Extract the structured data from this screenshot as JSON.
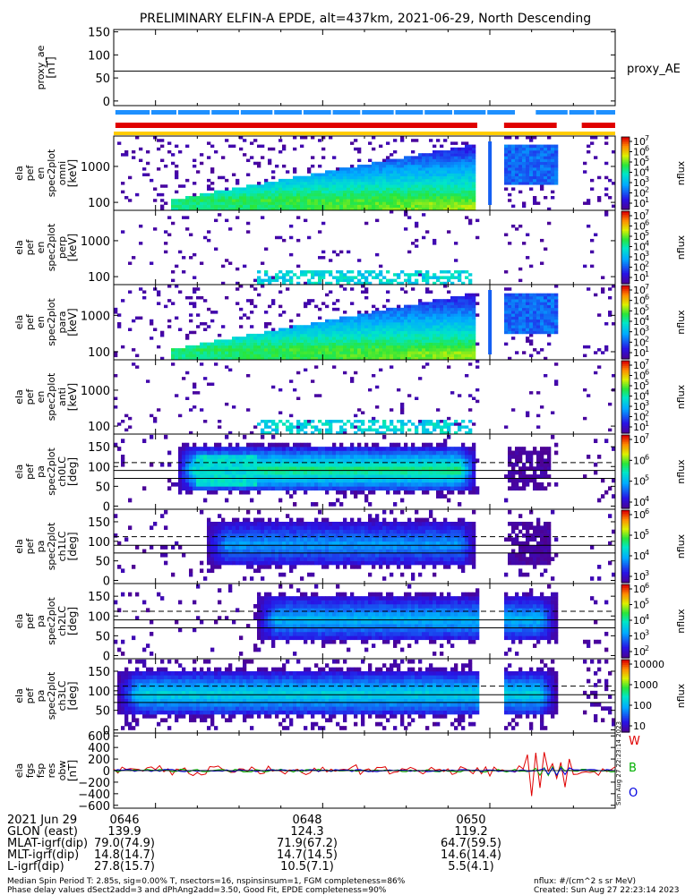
{
  "title": "PRELIMINARY ELFIN-A EPDE, alt=437km, 2021-06-29, North Descending",
  "chart_data": [
    {
      "type": "line",
      "ylabel": [
        "proxy_ae",
        "[nT]"
      ],
      "legend": "proxy_AE",
      "ylim": [
        -10,
        155
      ],
      "yticks": [
        "150",
        "100",
        "50",
        "0"
      ],
      "ytick_values": [
        150,
        100,
        50,
        0
      ],
      "series": [
        {
          "values": [
            65,
            65
          ]
        }
      ],
      "x": [
        "06:45:30",
        "06:51:30"
      ]
    },
    {
      "type": "heatmap",
      "ylabel": [
        "ela",
        "pef",
        "en",
        "spec2plot",
        "omni",
        "[keV]"
      ],
      "yticks": [
        "1000",
        "100"
      ],
      "ytick_values": [
        1000,
        100
      ],
      "ylim": [
        60,
        7000
      ],
      "yscale": "log",
      "colorbar": {
        "ticks": [
          "10",
          "10",
          "10",
          "10",
          "10",
          "10",
          "10"
        ],
        "exps": [
          "7",
          "6",
          "5",
          "4",
          "3",
          "2",
          "1"
        ],
        "label": "nflux",
        "range": [
          10,
          10000000
        ],
        "scale": "log"
      }
    },
    {
      "type": "heatmap",
      "ylabel": [
        "ela",
        "pef",
        "en",
        "spec2plot",
        "perp",
        "[keV]"
      ],
      "yticks": [
        "1000",
        "100"
      ],
      "ytick_values": [
        1000,
        100
      ],
      "ylim": [
        60,
        7000
      ],
      "yscale": "log",
      "colorbar": {
        "ticks": [
          "10",
          "10",
          "10",
          "10",
          "10",
          "10",
          "10"
        ],
        "exps": [
          "7",
          "6",
          "5",
          "4",
          "3",
          "2",
          "1"
        ],
        "label": "nflux",
        "range": [
          10,
          10000000
        ],
        "scale": "log"
      }
    },
    {
      "type": "heatmap",
      "ylabel": [
        "ela",
        "pef",
        "en",
        "spec2plot",
        "para",
        "[keV]"
      ],
      "yticks": [
        "1000",
        "100"
      ],
      "ytick_values": [
        1000,
        100
      ],
      "ylim": [
        60,
        7000
      ],
      "yscale": "log",
      "colorbar": {
        "ticks": [
          "10",
          "10",
          "10",
          "10",
          "10",
          "10",
          "10"
        ],
        "exps": [
          "7",
          "6",
          "5",
          "4",
          "3",
          "2",
          "1"
        ],
        "label": "nflux",
        "range": [
          10,
          10000000
        ],
        "scale": "log"
      }
    },
    {
      "type": "heatmap",
      "ylabel": [
        "ela",
        "pef",
        "en",
        "spec2plot",
        "anti",
        "[keV]"
      ],
      "yticks": [
        "1000",
        "100"
      ],
      "ytick_values": [
        1000,
        100
      ],
      "ylim": [
        60,
        7000
      ],
      "yscale": "log",
      "colorbar": {
        "ticks": [
          "10",
          "10",
          "10",
          "10",
          "10",
          "10",
          "10"
        ],
        "exps": [
          "7",
          "6",
          "5",
          "4",
          "3",
          "2",
          "1"
        ],
        "label": "nflux",
        "range": [
          10,
          10000000
        ],
        "scale": "log"
      }
    },
    {
      "type": "heatmap",
      "ylabel": [
        "ela",
        "pef",
        "pa",
        "spec2plot",
        "ch0LC",
        "[deg]"
      ],
      "yticks": [
        "150",
        "100",
        "50",
        "0"
      ],
      "ytick_values": [
        150,
        100,
        50,
        0
      ],
      "ylim": [
        -8,
        182
      ],
      "colorbar": {
        "ticks": [
          "10",
          "10",
          "10",
          "10"
        ],
        "exps": [
          "7",
          "6",
          "5",
          "4"
        ],
        "label": "nflux",
        "range": [
          10000,
          10000000
        ],
        "scale": "log"
      }
    },
    {
      "type": "heatmap",
      "ylabel": [
        "ela",
        "pef",
        "pa",
        "spec2plot",
        "ch1LC",
        "[deg]"
      ],
      "yticks": [
        "150",
        "100",
        "50",
        "0"
      ],
      "ytick_values": [
        150,
        100,
        50,
        0
      ],
      "ylim": [
        -8,
        182
      ],
      "colorbar": {
        "ticks": [
          "10",
          "10",
          "10",
          "10"
        ],
        "exps": [
          "6",
          "5",
          "4",
          "3"
        ],
        "label": "nflux",
        "range": [
          1000,
          1000000
        ],
        "scale": "log"
      }
    },
    {
      "type": "heatmap",
      "ylabel": [
        "ela",
        "pef",
        "pa",
        "spec2plot",
        "ch2LC",
        "[deg]"
      ],
      "yticks": [
        "150",
        "100",
        "50",
        "0"
      ],
      "ytick_values": [
        150,
        100,
        50,
        0
      ],
      "ylim": [
        -8,
        182
      ],
      "colorbar": {
        "ticks": [
          "10",
          "10",
          "10",
          "10",
          "10"
        ],
        "exps": [
          "6",
          "5",
          "4",
          "3",
          "2"
        ],
        "label": "nflux",
        "range": [
          100,
          1000000
        ],
        "scale": "log"
      }
    },
    {
      "type": "heatmap",
      "ylabel": [
        "ela",
        "pef",
        "pa",
        "spec2plot",
        "ch3LC",
        "[deg]"
      ],
      "yticks": [
        "150",
        "100",
        "50",
        "0"
      ],
      "ytick_values": [
        150,
        100,
        50,
        0
      ],
      "ylim": [
        -8,
        182
      ],
      "colorbar": {
        "ticks": [
          "10000",
          "1000",
          "100",
          "10"
        ],
        "label": "nflux",
        "range": [
          10,
          10000
        ],
        "scale": "log"
      }
    },
    {
      "type": "line",
      "ylabel": [
        "ela",
        "fgs",
        "fsp",
        "res",
        "obw",
        "[nT]"
      ],
      "yticks": [
        "600",
        "400",
        "200",
        "0",
        "−200",
        "−400",
        "−600"
      ],
      "ytick_values": [
        600,
        400,
        200,
        0,
        -200,
        -400,
        -600
      ],
      "ylim": [
        -650,
        650
      ],
      "legend": [
        "W",
        "B",
        "O"
      ],
      "series_colors": [
        "#e00000",
        "#00b000",
        "#0000e0"
      ]
    }
  ],
  "time_axis": {
    "label": "2021 Jun 29",
    "ticks": [
      "0646",
      "0648",
      "0650"
    ],
    "tick_values": [
      "06:46",
      "06:48",
      "06:50"
    ]
  },
  "ephemeris": [
    {
      "label": "GLON (east)",
      "values": [
        "139.9",
        "124.3",
        "119.2"
      ]
    },
    {
      "label": "MLAT-igrf(dip)",
      "values": [
        "79.0(74.9)",
        "71.9(67.2)",
        "64.7(59.5)"
      ]
    },
    {
      "label": "MLT-igrf(dip)",
      "values": [
        "14.8(14.7)",
        "14.7(14.5)",
        "14.6(14.4)"
      ]
    },
    {
      "label": "L-igrf(dip)",
      "values": [
        "27.8(15.7)",
        "10.5(7.1)",
        "5.5(4.1)"
      ]
    }
  ],
  "footer": {
    "line1": "Median Spin Period T: 2.85s, sig=0.00% T, nsectors=16, nspinsinsum=1, FGM completeness=86%",
    "line2": "Phase delay values dSect2add=3 and dPhAng2add=3.50, Good Fit, EPDE completeness=90%",
    "units": "nflux: #/(cm^2 s sr MeV)",
    "created": "Created: Sun Aug 27 22:23:14 2023",
    "side_stamp": "Sun Aug 27 22:23:14 2023"
  },
  "colors": {
    "red_bar": "#e00000",
    "blue_bar": "#1e90ff",
    "yellow_bar": "#ffcc00"
  }
}
